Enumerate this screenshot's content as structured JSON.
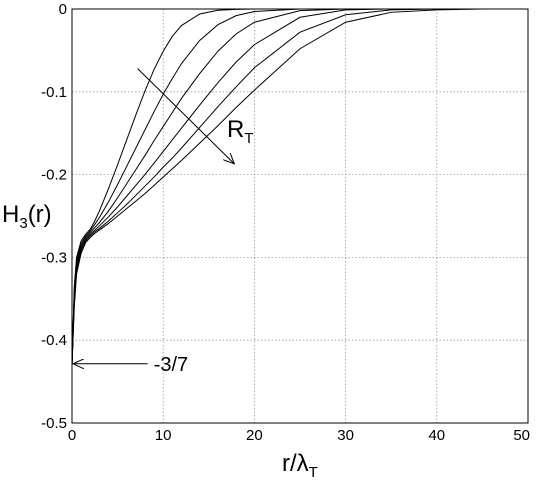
{
  "chart_data": {
    "type": "line",
    "title": "",
    "xlabel": {
      "base": "r/λ",
      "sub": "T"
    },
    "ylabel": {
      "base": "H",
      "sub": "3",
      "tail": "(r)"
    },
    "xlim": [
      0,
      50
    ],
    "ylim": [
      -0.5,
      0
    ],
    "xticks": [
      0,
      10,
      20,
      30,
      40,
      50
    ],
    "yticks": [
      0,
      -0.1,
      -0.2,
      -0.3,
      -0.4,
      -0.5
    ],
    "xtick_labels": [
      "0",
      "10",
      "20",
      "30",
      "40",
      "50"
    ],
    "ytick_labels": [
      "0",
      "-0.1",
      "-0.2",
      "-0.3",
      "-0.4",
      "-0.5"
    ],
    "grid": true,
    "line_color": "#000000",
    "grid_color": "#9a9a9a",
    "series": [
      {
        "x": [
          0,
          0.25,
          0.5,
          1,
          1.5,
          2,
          2.5,
          3,
          4,
          5,
          6,
          7,
          8,
          9,
          10,
          11,
          12,
          14,
          16,
          18,
          20,
          25,
          30,
          35,
          40,
          45,
          50
        ],
        "y": [
          -0.43,
          -0.335,
          -0.3,
          -0.28,
          -0.272,
          -0.266,
          -0.256,
          -0.244,
          -0.217,
          -0.188,
          -0.158,
          -0.128,
          -0.099,
          -0.073,
          -0.051,
          -0.033,
          -0.02,
          -0.006,
          -0.0015,
          -0.0005,
          0,
          0,
          0,
          0,
          0,
          0,
          0
        ]
      },
      {
        "x": [
          0,
          0.25,
          0.5,
          1,
          1.5,
          2,
          2.5,
          3,
          4,
          5,
          6,
          7,
          8,
          9,
          10,
          11,
          12,
          14,
          16,
          18,
          20,
          25,
          30,
          35,
          40,
          45,
          50
        ],
        "y": [
          -0.43,
          -0.34,
          -0.304,
          -0.283,
          -0.274,
          -0.268,
          -0.26,
          -0.252,
          -0.233,
          -0.212,
          -0.19,
          -0.168,
          -0.146,
          -0.124,
          -0.103,
          -0.084,
          -0.066,
          -0.038,
          -0.019,
          -0.008,
          -0.003,
          0,
          0,
          0,
          0,
          0,
          0
        ]
      },
      {
        "x": [
          0,
          0.25,
          0.5,
          1,
          1.5,
          2,
          2.5,
          3,
          4,
          5,
          6,
          7,
          8,
          9,
          10,
          11,
          12,
          14,
          16,
          18,
          20,
          25,
          30,
          35,
          40,
          45,
          50
        ],
        "y": [
          -0.43,
          -0.345,
          -0.308,
          -0.286,
          -0.276,
          -0.27,
          -0.264,
          -0.258,
          -0.244,
          -0.228,
          -0.211,
          -0.194,
          -0.177,
          -0.159,
          -0.142,
          -0.125,
          -0.108,
          -0.078,
          -0.051,
          -0.03,
          -0.016,
          -0.002,
          0,
          0,
          0,
          0,
          0
        ]
      },
      {
        "x": [
          0,
          0.25,
          0.5,
          1,
          1.5,
          2,
          2.5,
          3,
          4,
          5,
          6,
          7,
          8,
          9,
          10,
          11,
          12,
          14,
          16,
          18,
          20,
          25,
          30,
          35,
          40,
          45,
          50
        ],
        "y": [
          -0.43,
          -0.35,
          -0.312,
          -0.289,
          -0.278,
          -0.272,
          -0.267,
          -0.262,
          -0.251,
          -0.239,
          -0.226,
          -0.213,
          -0.2,
          -0.186,
          -0.172,
          -0.158,
          -0.144,
          -0.116,
          -0.089,
          -0.064,
          -0.043,
          -0.01,
          -0.001,
          0,
          0,
          0,
          0
        ]
      },
      {
        "x": [
          0,
          0.25,
          0.5,
          1,
          1.5,
          2,
          2.5,
          3,
          4,
          5,
          6,
          7,
          8,
          9,
          10,
          11,
          12,
          14,
          16,
          18,
          20,
          25,
          30,
          35,
          40,
          45,
          50
        ],
        "y": [
          -0.43,
          -0.355,
          -0.316,
          -0.292,
          -0.28,
          -0.274,
          -0.269,
          -0.265,
          -0.256,
          -0.246,
          -0.236,
          -0.225,
          -0.214,
          -0.203,
          -0.191,
          -0.18,
          -0.168,
          -0.143,
          -0.118,
          -0.094,
          -0.071,
          -0.028,
          -0.007,
          -0.001,
          0,
          0,
          0
        ]
      },
      {
        "x": [
          0,
          0.25,
          0.5,
          1,
          1.5,
          2,
          2.5,
          3,
          4,
          5,
          6,
          7,
          8,
          9,
          10,
          11,
          12,
          14,
          16,
          18,
          20,
          25,
          30,
          35,
          40,
          45,
          50
        ],
        "y": [
          -0.43,
          -0.36,
          -0.32,
          -0.295,
          -0.282,
          -0.276,
          -0.271,
          -0.267,
          -0.259,
          -0.25,
          -0.241,
          -0.232,
          -0.223,
          -0.213,
          -0.203,
          -0.193,
          -0.183,
          -0.162,
          -0.141,
          -0.119,
          -0.098,
          -0.048,
          -0.016,
          -0.004,
          -0.001,
          0,
          0
        ]
      }
    ],
    "annotations": [
      {
        "id": "rt",
        "text_base": "R",
        "text_sub": "T",
        "arrow_from": [
          7.2,
          -0.072
        ],
        "arrow_to": [
          17.8,
          -0.187
        ],
        "text_at": [
          17,
          -0.145
        ]
      },
      {
        "id": "asym",
        "text": "-3/7",
        "arrow_from": [
          8.3,
          -0.4285
        ],
        "arrow_to": [
          0,
          -0.4285
        ],
        "text_at": [
          8.3,
          -0.4285
        ]
      }
    ]
  }
}
